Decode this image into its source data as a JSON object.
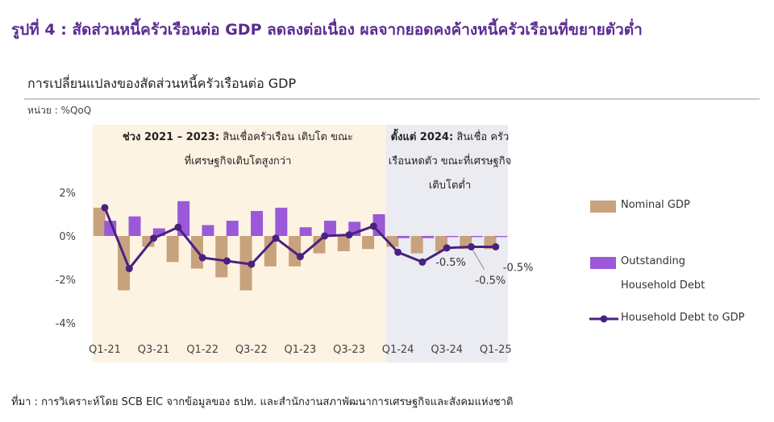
{
  "figure_title": "รูปที่ 4 : สัดส่วนหนี้ครัวเรือนต่อ GDP ลดลงต่อเนื่อง ผลจากยอดคงค้างหนี้ครัวเรือนที่ขยายตัวต่ำ",
  "source": "ที่มา : การวิเคราะห์โดย SCB EIC จากข้อมูลของ ธปท. และสำนักงานสภาพัฒนาการเศรษฐกิจและสังคมแห่งชาติ",
  "colors": {
    "title": "#5b2c91",
    "nominal_gdp": "#c8a27c",
    "household_debt": "#9b59d9",
    "ratio_line": "#4a2180",
    "shade_period1": "#fdf3e3",
    "shade_period2": "#ebebf2"
  },
  "chart_data": {
    "type": "bar",
    "title": "การเปลี่ยนแปลงของสัดส่วนหนี้ครัวเรือนต่อ  GDP",
    "unit": "หน่วย : %QoQ",
    "categories": [
      "Q1-21",
      "Q2-21",
      "Q3-21",
      "Q4-21",
      "Q1-22",
      "Q2-22",
      "Q3-22",
      "Q4-22",
      "Q1-23",
      "Q2-23",
      "Q3-23",
      "Q4-23",
      "Q1-24",
      "Q2-24",
      "Q3-24",
      "Q4-24",
      "Q1-25"
    ],
    "x_tick_labels": [
      "Q1-21",
      "Q3-21",
      "Q1-22",
      "Q3-22",
      "Q1-23",
      "Q3-23",
      "Q1-24",
      "Q3-24",
      "Q1-25"
    ],
    "ylim": [
      -4,
      2
    ],
    "y_tick_labels": [
      "2%",
      "0%",
      "-2%",
      "-4%"
    ],
    "y_ticks": [
      2,
      0,
      -2,
      -4
    ],
    "series": [
      {
        "name": "Nominal GDP",
        "kind": "bar",
        "values": [
          1.3,
          -2.5,
          -0.5,
          -1.2,
          -1.5,
          -1.9,
          -2.5,
          -1.4,
          -1.4,
          -0.8,
          -0.7,
          -0.6,
          -0.5,
          -0.8,
          -0.7,
          -0.6,
          -0.6
        ]
      },
      {
        "name": "Outstanding Household Debt",
        "kind": "bar",
        "values": [
          0.7,
          0.9,
          0.35,
          1.6,
          0.5,
          0.7,
          1.15,
          1.3,
          0.4,
          0.7,
          0.65,
          1.0,
          -0.1,
          -0.1,
          -0.05,
          -0.05,
          -0.05
        ]
      },
      {
        "name": "Household Debt to GDP",
        "kind": "line",
        "values": [
          1.3,
          -1.5,
          -0.1,
          0.4,
          -1.0,
          -1.15,
          -1.3,
          -0.1,
          -0.95,
          0.0,
          0.05,
          0.45,
          -0.75,
          -1.2,
          -0.55,
          -0.5,
          -0.5
        ]
      }
    ],
    "data_labels": [
      {
        "category": "Q3-24",
        "text": "-0.5%"
      },
      {
        "category": "Q4-24",
        "text": "-0.5%"
      },
      {
        "category": "Q1-25",
        "text": "-0.5%"
      }
    ],
    "shaded_periods": [
      {
        "from": "Q1-21",
        "to": "Q4-23",
        "note_bold": "ช่วง 2021 – 2023:",
        "note_text": " สินเชื่อครัวเรือน เติบโต ขณะที่เศรษฐกิจเติบโตสูงกว่า"
      },
      {
        "from": "Q1-24",
        "to": "Q1-25",
        "note_bold": "ตั้งแต่ 2024:",
        "note_text": " สินเชื่อ ครัวเรือนหดตัว ขณะที่เศรษฐกิจ เติบโตต่ำ"
      }
    ],
    "legend": [
      "Nominal GDP",
      "Outstanding Household Debt",
      "Household Debt to GDP"
    ],
    "legend_position": "right",
    "grid": false
  }
}
